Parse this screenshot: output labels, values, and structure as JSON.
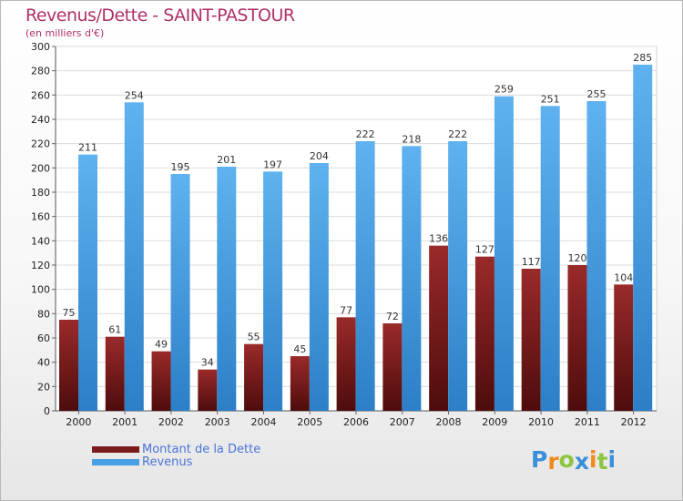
{
  "chart_data": {
    "type": "bar",
    "title": "Revenus/Dette - SAINT-PASTOUR",
    "subtitle": "(en milliers d'€)",
    "categories": [
      "2000",
      "2001",
      "2002",
      "2003",
      "2004",
      "2005",
      "2006",
      "2007",
      "2008",
      "2009",
      "2010",
      "2011",
      "2012"
    ],
    "series": [
      {
        "name": "Montant de la Dette",
        "values": [
          75,
          61,
          49,
          34,
          55,
          45,
          77,
          72,
          136,
          127,
          117,
          120,
          104
        ],
        "color": "#7a1c1c"
      },
      {
        "name": "Revenus",
        "values": [
          211,
          254,
          195,
          201,
          197,
          204,
          222,
          218,
          222,
          259,
          251,
          255,
          285
        ],
        "color": "#4a9fe3"
      }
    ],
    "ylim": [
      0,
      300
    ],
    "yticks": [
      0,
      20,
      40,
      60,
      80,
      100,
      120,
      140,
      160,
      180,
      200,
      220,
      240,
      260,
      280,
      300
    ],
    "grid": true,
    "legend_position": "bottom-left",
    "data_labels": true
  },
  "logo": {
    "text": "Proxiti",
    "letters": [
      "P",
      "r",
      "o",
      "x",
      "i",
      "t",
      "i"
    ],
    "colors": [
      "#3b8ed8",
      "#f08a1c",
      "#8cc63e",
      "#3b8ed8",
      "#f08a1c",
      "#8cc63e",
      "#3b8ed8"
    ]
  }
}
